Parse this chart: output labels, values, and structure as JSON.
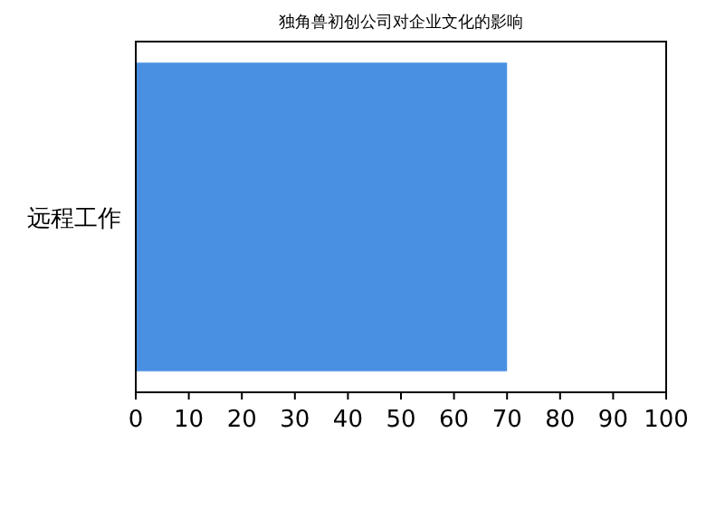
{
  "chart_data": {
    "type": "bar",
    "orientation": "horizontal",
    "title": "独角兽初创公司对企业文化的影响",
    "categories": [
      "远程工作"
    ],
    "values": [
      70
    ],
    "color": "#4a90e2",
    "xlim": [
      0,
      100
    ],
    "xticks": [
      0,
      10,
      20,
      30,
      40,
      50,
      60,
      70,
      80,
      90,
      100
    ]
  }
}
